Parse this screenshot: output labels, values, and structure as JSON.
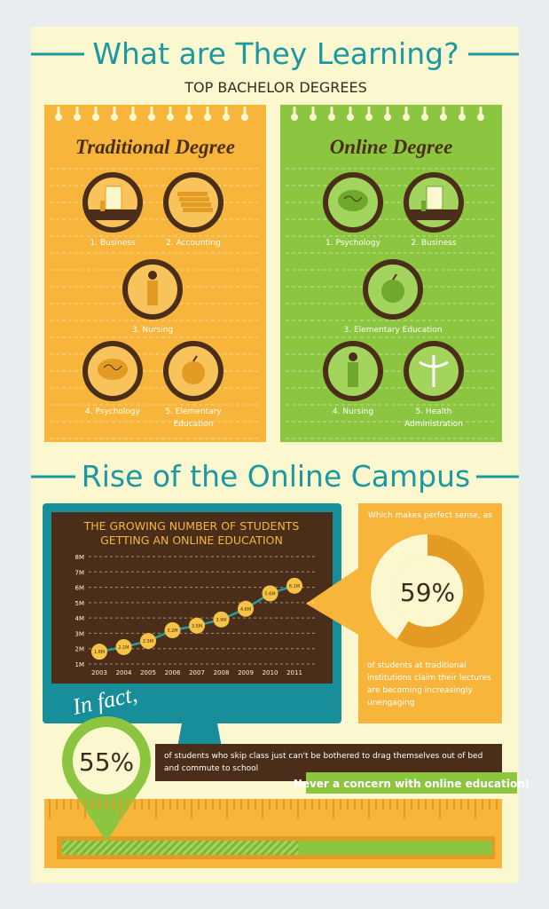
{
  "header": {
    "title": "What are They Learning?",
    "subtitle": "TOP BACHELOR DEGREES"
  },
  "traditional": {
    "title": "Traditional Degree",
    "items": [
      "1. Business",
      "2. Accounting",
      "3. Nursing",
      "4. Psychology",
      "5. Elementary Education"
    ]
  },
  "online": {
    "title": "Online Degree",
    "items": [
      "1. Psychology",
      "2. Business",
      "3. Elementary Education",
      "4. Nursing",
      "5. Health Administration"
    ]
  },
  "section_title": "Rise of the Online Campus",
  "chart_data": {
    "type": "line",
    "title": [
      "THE GROWING NUMBER OF STUDENTS",
      "GETTING AN ONLINE EDUCATION"
    ],
    "categories": [
      "2003",
      "2004",
      "2005",
      "2006",
      "2007",
      "2008",
      "2009",
      "2010",
      "2011"
    ],
    "values": [
      1.8,
      2.1,
      2.5,
      3.2,
      3.5,
      3.9,
      4.6,
      5.6,
      6.1
    ],
    "value_labels": [
      "1.8M",
      "2.1M",
      "2.5M",
      "3.2M",
      "3.5M",
      "3.9M",
      "4.6M",
      "5.6M",
      "6.1M"
    ],
    "ylim": [
      1,
      8
    ],
    "yticks": [
      {
        "value": 1,
        "label": "1M"
      },
      {
        "value": 2,
        "label": "2M"
      },
      {
        "value": 3,
        "label": "3M"
      },
      {
        "value": 4,
        "label": "4M"
      },
      {
        "value": 5,
        "label": "5M"
      },
      {
        "value": 6,
        "label": "6M"
      },
      {
        "value": 7,
        "label": "7M"
      },
      {
        "value": 8,
        "label": "8M"
      }
    ],
    "color": "#2a9ca4",
    "grid": true
  },
  "donut": {
    "intro": "Which makes perfect sense, as",
    "value": 59,
    "label": "59%",
    "caption": "of students at traditional institutions claim their lectures are becoming increasingly unengaging"
  },
  "fact": {
    "heading": "In fact,",
    "value": 55,
    "label": "55%",
    "caption": "of students who skip class just can't be bothered to drag themselves out of bed and commute to school",
    "tagline": "Never a concern with online education!"
  }
}
